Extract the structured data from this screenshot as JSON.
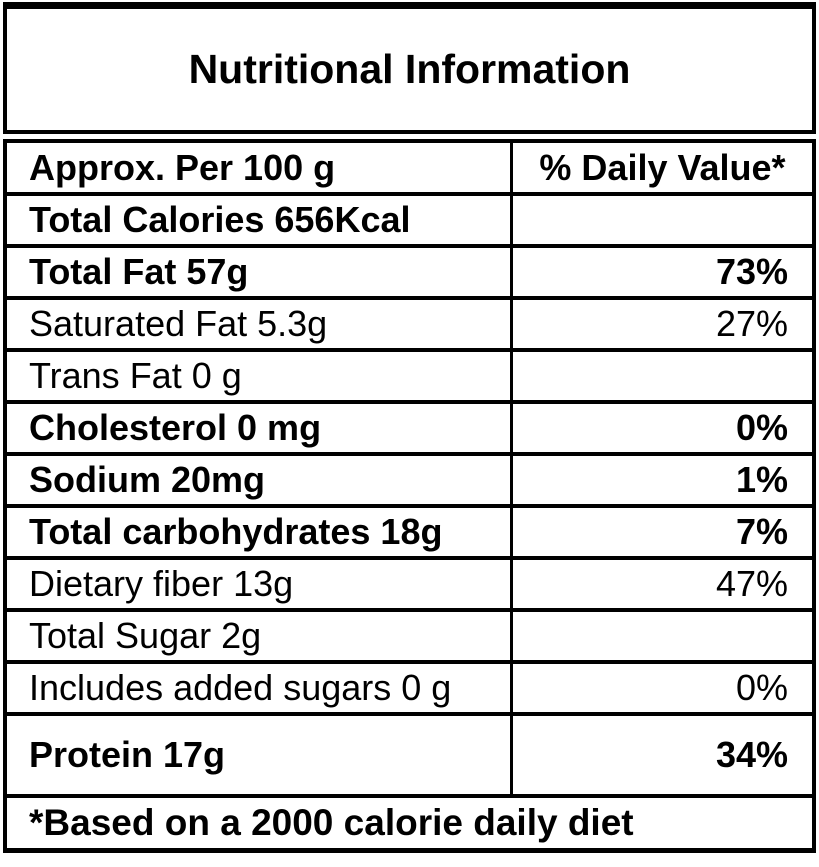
{
  "title": "Nutritional Information",
  "header": {
    "left": "Approx. Per 100 g",
    "right": "% Daily Value*"
  },
  "rows": [
    {
      "label": "Total Calories 656Kcal",
      "value": "",
      "bold": true
    },
    {
      "label": "Total Fat 57g",
      "value": "73%",
      "bold": true
    },
    {
      "label": "Saturated Fat 5.3g",
      "value": "27%",
      "bold": false
    },
    {
      "label": "Trans Fat 0 g",
      "value": "",
      "bold": false
    },
    {
      "label": "Cholesterol 0 mg",
      "value": "0%",
      "bold": true
    },
    {
      "label": "Sodium 20mg",
      "value": "1%",
      "bold": true
    },
    {
      "label": "Total carbohydrates 18g",
      "value": "7%",
      "bold": true
    },
    {
      "label": "Dietary fiber 13g",
      "value": "47%",
      "bold": false
    },
    {
      "label": "Total Sugar 2g",
      "value": "",
      "bold": false
    },
    {
      "label": "Includes added sugars 0 g",
      "value": "0%",
      "bold": false
    },
    {
      "label": "Protein 17g",
      "value": "34%",
      "bold": true
    }
  ],
  "footer": "*Based on a 2000 calorie daily diet",
  "colors": {
    "border": "#000000",
    "background": "#ffffff",
    "text": "#000000"
  }
}
